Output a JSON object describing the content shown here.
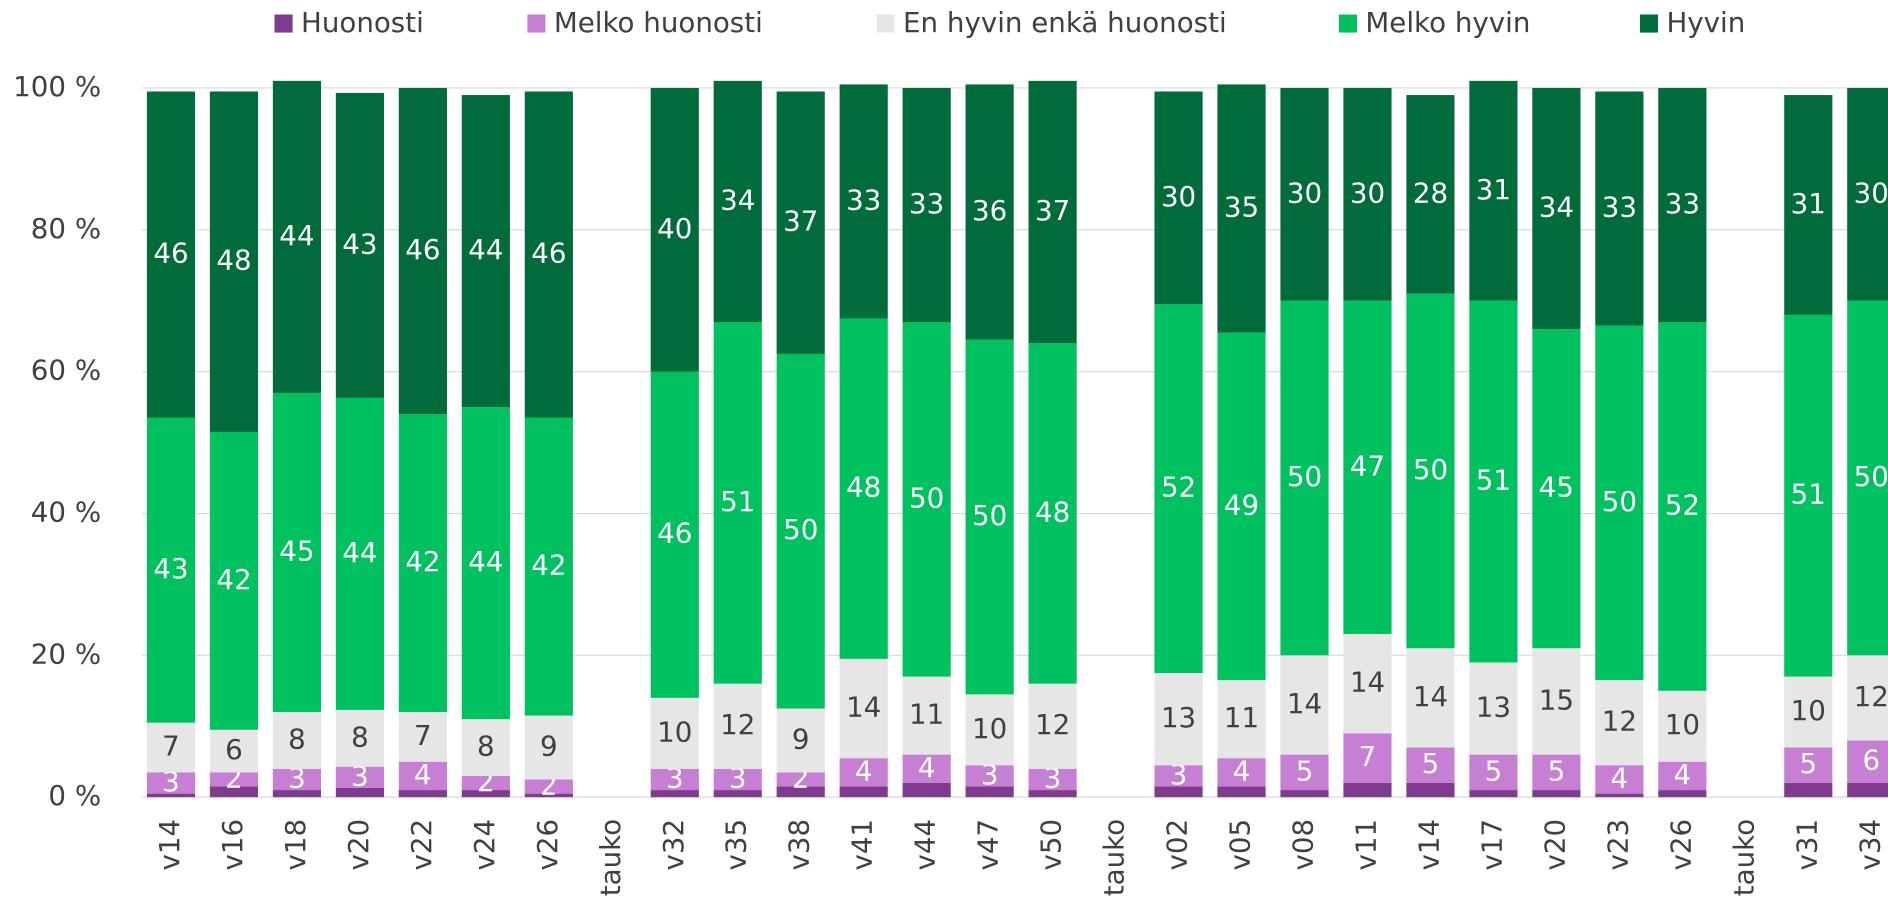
{
  "chart_data": {
    "type": "stacked_bar",
    "categories": [
      "v14",
      "v16",
      "v18",
      "v20",
      "v22",
      "v24",
      "v26",
      "tauko",
      "v32",
      "v35",
      "v38",
      "v41",
      "v44",
      "v47",
      "v50",
      "tauko",
      "v02",
      "v05",
      "v08",
      "v11",
      "v14",
      "v17",
      "v20",
      "v23",
      "v26",
      "tauko",
      "v31",
      "v34"
    ],
    "series": [
      {
        "name": "Huonosti",
        "color": "#7f3b8e",
        "values": [
          0.5,
          1.5,
          1,
          1.3,
          1,
          1,
          0.5,
          null,
          1,
          1,
          1.5,
          1.5,
          2,
          1.5,
          1,
          null,
          1.5,
          1.5,
          1,
          2,
          2,
          1,
          1,
          0.5,
          1,
          null,
          2,
          2
        ]
      },
      {
        "name": "Melko huonosti",
        "color": "#c67fd3",
        "values": [
          3,
          2,
          3,
          3,
          4,
          2,
          2,
          null,
          3,
          3,
          2,
          4,
          4,
          3,
          3,
          null,
          3,
          4,
          5,
          7,
          5,
          5,
          5,
          4,
          4,
          null,
          5,
          6
        ]
      },
      {
        "name": "En hyvin enkä huonosti",
        "color": "#e6e6e6",
        "values": [
          7,
          6,
          8,
          8,
          7,
          8,
          9,
          null,
          10,
          12,
          9,
          14,
          11,
          10,
          12,
          null,
          13,
          11,
          14,
          14,
          14,
          13,
          15,
          12,
          10,
          null,
          10,
          12
        ]
      },
      {
        "name": "Melko hyvin",
        "color": "#00c160",
        "values": [
          43,
          42,
          45,
          44,
          42,
          44,
          42,
          null,
          46,
          51,
          50,
          48,
          50,
          50,
          48,
          null,
          52,
          49,
          50,
          47,
          50,
          51,
          45,
          50,
          52,
          null,
          51,
          50
        ]
      },
      {
        "name": "Hyvin",
        "color": "#006b3b",
        "values": [
          46,
          48,
          44,
          43,
          46,
          44,
          46,
          null,
          40,
          34,
          37,
          33,
          33,
          36,
          37,
          null,
          30,
          35,
          30,
          30,
          28,
          31,
          34,
          33,
          33,
          null,
          31,
          30
        ]
      }
    ],
    "ylim": [
      0,
      100
    ],
    "yticks": [
      {
        "value": 0,
        "label": "0 %"
      },
      {
        "value": 20,
        "label": "20 %"
      },
      {
        "value": 40,
        "label": "40 %"
      },
      {
        "value": 60,
        "label": "60 %"
      },
      {
        "value": 80,
        "label": "80 %"
      },
      {
        "value": 100,
        "label": "100 %"
      }
    ],
    "grid": true,
    "legend": "top"
  }
}
